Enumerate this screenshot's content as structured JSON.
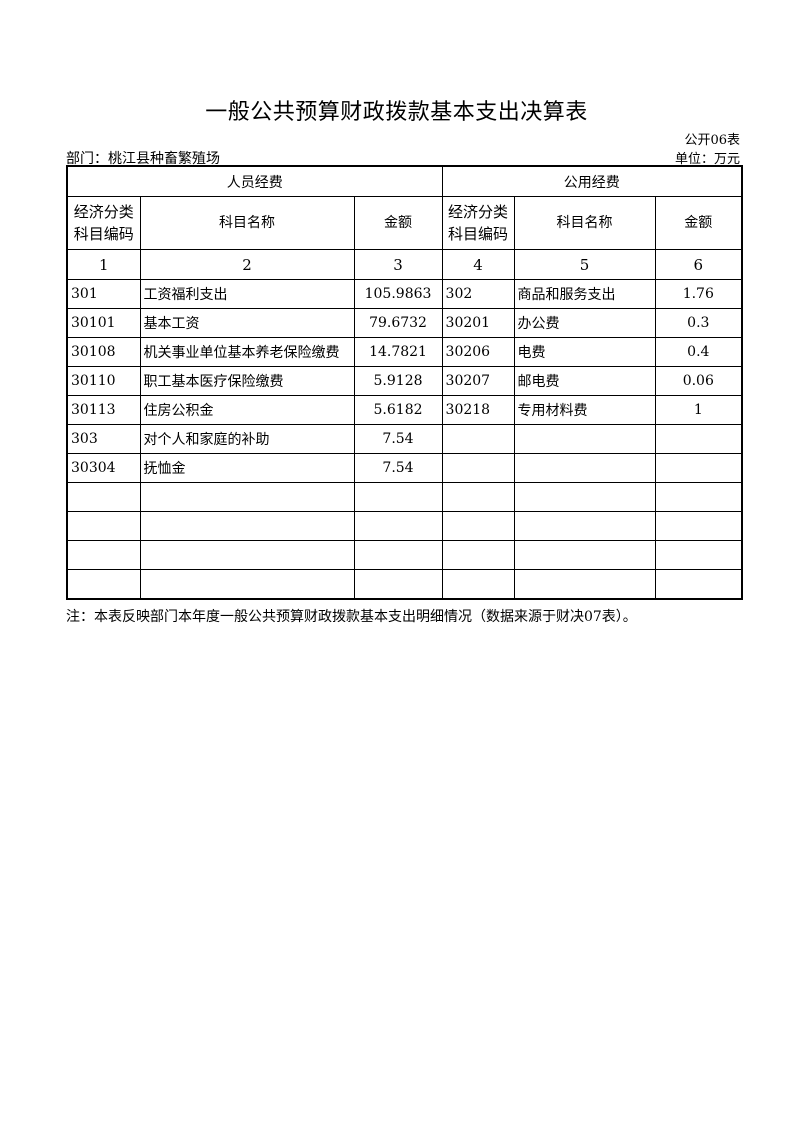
{
  "title": "一般公共预算财政拨款基本支出决算表",
  "form_no": "公开06表",
  "department": "部门：桃江县种畜繁殖场",
  "unit": "单位：万元",
  "table": {
    "group_headers": [
      "人员经费",
      "公用经费"
    ],
    "column_headers": [
      "经济分类\n科目编码",
      "科目名称",
      "金额",
      "经济分类\n科目编码",
      "科目名称",
      "金额"
    ],
    "column_numbers": [
      "1",
      "2",
      "3",
      "4",
      "5",
      "6"
    ],
    "rows": [
      [
        "301",
        "工资福利支出",
        "105.9863",
        "302",
        "商品和服务支出",
        "1.76"
      ],
      [
        "30101",
        "基本工资",
        "79.6732",
        "30201",
        "办公费",
        "0.3"
      ],
      [
        "30108",
        "机关事业单位基本养老保险缴费",
        "14.7821",
        "30206",
        "电费",
        "0.4"
      ],
      [
        "30110",
        "职工基本医疗保险缴费",
        "5.9128",
        "30207",
        "邮电费",
        "0.06"
      ],
      [
        "30113",
        "住房公积金",
        "5.6182",
        "30218",
        "专用材料费",
        "1"
      ],
      [
        "303",
        "对个人和家庭的补助",
        "7.54",
        "",
        "",
        ""
      ],
      [
        "30304",
        "抚恤金",
        "7.54",
        "",
        "",
        ""
      ],
      [
        "",
        "",
        "",
        "",
        "",
        ""
      ],
      [
        "",
        "",
        "",
        "",
        "",
        ""
      ],
      [
        "",
        "",
        "",
        "",
        "",
        ""
      ],
      [
        "",
        "",
        "",
        "",
        "",
        ""
      ]
    ]
  },
  "note": "注：本表反映部门本年度一般公共预算财政拨款基本支出明细情况（数据来源于财决07表）。"
}
